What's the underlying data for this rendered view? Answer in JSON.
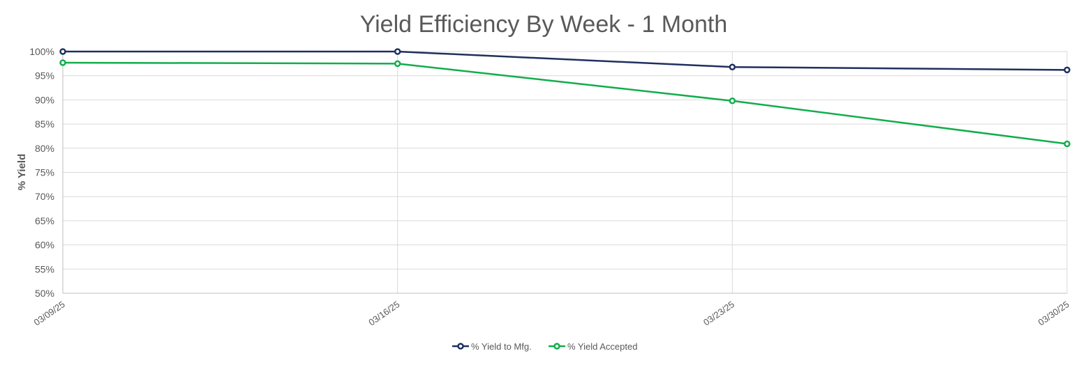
{
  "chart_data": {
    "type": "line",
    "title": "Yield Efficiency By Week - 1 Month",
    "xlabel": "",
    "ylabel": "% Yield",
    "categories": [
      "03/09/25",
      "03/16/25",
      "03/23/25",
      "03/30/25"
    ],
    "yticks": [
      "50%",
      "55%",
      "60%",
      "65%",
      "70%",
      "75%",
      "80%",
      "85%",
      "90%",
      "95%",
      "100%"
    ],
    "ylim": [
      50,
      100
    ],
    "grid": true,
    "legend_position": "bottom",
    "series": [
      {
        "name": "% Yield to Mfg.",
        "values": [
          100,
          100,
          96.8,
          96.2
        ],
        "color": "#1f2f5f"
      },
      {
        "name": "% Yield Accepted",
        "values": [
          97.7,
          97.5,
          89.8,
          80.9
        ],
        "color": "#12ad4b"
      }
    ]
  }
}
